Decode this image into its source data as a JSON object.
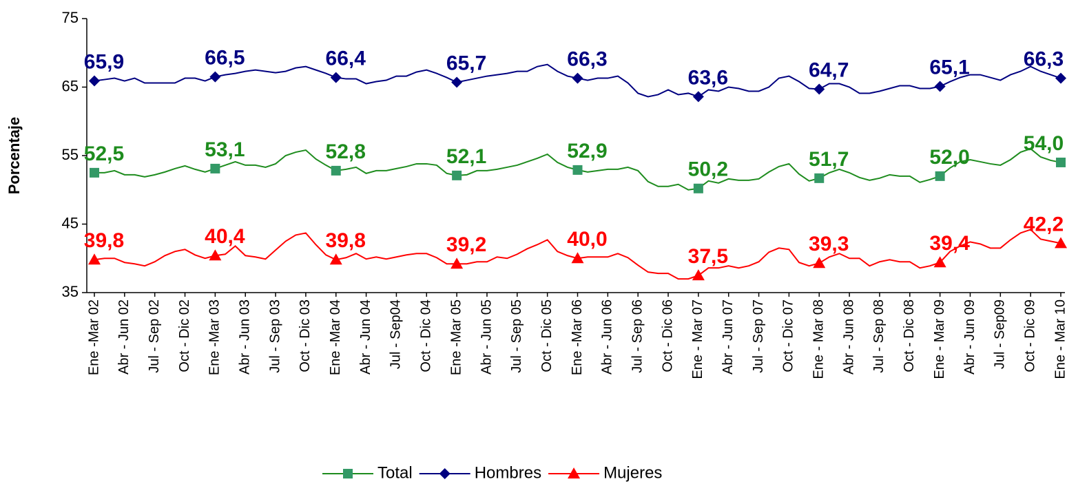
{
  "chart_data": {
    "type": "line",
    "y_label": "Porcentaje",
    "categories": [
      "Ene -Mar 02",
      null,
      null,
      "Abr - Jun 02",
      null,
      null,
      "Jul - Sep 02",
      null,
      null,
      "Oct - Dic 02",
      null,
      null,
      "Ene -Mar 03",
      null,
      null,
      "Abr - Jun 03",
      null,
      null,
      "Jul - Sep 03",
      null,
      null,
      "Oct - Dic 03",
      null,
      null,
      "Ene -Mar 04",
      null,
      null,
      "Abr - Jun 04",
      null,
      null,
      "Jul - Sep04",
      null,
      null,
      "Oct - Dic 04",
      null,
      null,
      "Ene -Mar 05",
      null,
      null,
      "Abr - Jun 05",
      null,
      null,
      "Jul - Sep 05",
      null,
      null,
      "Oct - Dic 05",
      null,
      null,
      "Ene -Mar 06",
      null,
      null,
      "Abr - Jun 06",
      null,
      null,
      "Jul - Sep 06",
      null,
      null,
      "Oct - Dic 06",
      null,
      null,
      "Ene - Mar 07",
      null,
      null,
      "Abr - Jun 07",
      null,
      null,
      "Jul - Sep 07",
      null,
      null,
      "Oct - Dic 07",
      null,
      null,
      "Ene - Mar 08",
      null,
      null,
      "Abr - Jun 08",
      null,
      null,
      "Jul - Sep 08",
      null,
      null,
      "Oct - Dic 08",
      null,
      null,
      "Ene - Mar 09",
      null,
      null,
      "Abr - Jun 09",
      null,
      null,
      "Jul - Sep09",
      null,
      null,
      "Oct - Dic 09",
      null,
      null,
      "Ene - Mar 10"
    ],
    "ylim": [
      35,
      75
    ],
    "yticks": [
      35,
      45,
      55,
      65,
      75
    ],
    "grid": false,
    "legend": "bottom",
    "series": [
      {
        "name": "Total",
        "color": "#1e8c1e",
        "marker_color": "#339966",
        "marker": "square",
        "values": [
          52.5,
          52.5,
          52.8,
          52.2,
          52.2,
          51.9,
          52.2,
          52.6,
          53.1,
          53.5,
          53.0,
          52.6,
          53.1,
          53.6,
          54.1,
          53.6,
          53.6,
          53.3,
          53.8,
          55.0,
          55.5,
          55.8,
          54.5,
          53.6,
          52.8,
          53.0,
          53.3,
          52.4,
          52.8,
          52.8,
          53.1,
          53.4,
          53.8,
          53.8,
          53.6,
          52.4,
          52.1,
          52.2,
          52.8,
          52.8,
          53.0,
          53.3,
          53.6,
          54.1,
          54.6,
          55.2,
          54.0,
          53.3,
          52.9,
          52.6,
          52.8,
          53.0,
          53.0,
          53.3,
          52.8,
          51.2,
          50.5,
          50.5,
          50.8,
          50.0,
          50.2,
          51.3,
          51.0,
          51.6,
          51.4,
          51.4,
          51.6,
          52.6,
          53.4,
          53.8,
          52.3,
          51.3,
          51.7,
          52.5,
          53.0,
          52.5,
          51.8,
          51.4,
          51.7,
          52.2,
          52.0,
          52.0,
          51.1,
          51.5,
          52.0,
          53.2,
          54.1,
          54.4,
          54.1,
          53.8,
          53.6,
          54.4,
          55.5,
          56.0,
          54.8,
          54.3,
          54.0
        ],
        "value_labels": [
          "52,5",
          null,
          null,
          null,
          null,
          null,
          null,
          null,
          null,
          null,
          null,
          null,
          "53,1",
          null,
          null,
          null,
          null,
          null,
          null,
          null,
          null,
          null,
          null,
          null,
          "52,8",
          null,
          null,
          null,
          null,
          null,
          null,
          null,
          null,
          null,
          null,
          null,
          "52,1",
          null,
          null,
          null,
          null,
          null,
          null,
          null,
          null,
          null,
          null,
          null,
          "52,9",
          null,
          null,
          null,
          null,
          null,
          null,
          null,
          null,
          null,
          null,
          null,
          "50,2",
          null,
          null,
          null,
          null,
          null,
          null,
          null,
          null,
          null,
          null,
          null,
          "51,7",
          null,
          null,
          null,
          null,
          null,
          null,
          null,
          null,
          null,
          null,
          null,
          "52,0",
          null,
          null,
          null,
          null,
          null,
          null,
          null,
          null,
          null,
          null,
          null,
          "54,0"
        ]
      },
      {
        "name": "Hombres",
        "color": "#000080",
        "marker_color": "#000080",
        "marker": "diamond",
        "values": [
          65.9,
          66.1,
          66.3,
          65.9,
          66.3,
          65.6,
          65.6,
          65.6,
          65.6,
          66.3,
          66.3,
          65.9,
          66.5,
          66.8,
          67.0,
          67.3,
          67.5,
          67.3,
          67.1,
          67.3,
          67.8,
          68.0,
          67.5,
          67.0,
          66.4,
          66.2,
          66.2,
          65.5,
          65.8,
          66.0,
          66.6,
          66.6,
          67.2,
          67.5,
          67.0,
          66.4,
          65.7,
          66.0,
          66.3,
          66.6,
          66.8,
          67.0,
          67.3,
          67.3,
          68.0,
          68.3,
          67.3,
          66.6,
          66.3,
          66.0,
          66.3,
          66.3,
          66.6,
          65.6,
          64.1,
          63.6,
          63.9,
          64.6,
          63.9,
          64.1,
          63.6,
          64.6,
          64.4,
          65.0,
          64.8,
          64.4,
          64.4,
          65.0,
          66.3,
          66.6,
          65.8,
          64.8,
          64.7,
          65.5,
          65.5,
          65.0,
          64.1,
          64.1,
          64.4,
          64.8,
          65.2,
          65.2,
          64.8,
          64.8,
          65.1,
          65.8,
          66.4,
          66.8,
          66.8,
          66.4,
          66.0,
          66.8,
          67.3,
          68.0,
          67.3,
          66.8,
          66.3
        ],
        "value_labels": [
          "65,9",
          null,
          null,
          null,
          null,
          null,
          null,
          null,
          null,
          null,
          null,
          null,
          "66,5",
          null,
          null,
          null,
          null,
          null,
          null,
          null,
          null,
          null,
          null,
          null,
          "66,4",
          null,
          null,
          null,
          null,
          null,
          null,
          null,
          null,
          null,
          null,
          null,
          "65,7",
          null,
          null,
          null,
          null,
          null,
          null,
          null,
          null,
          null,
          null,
          null,
          "66,3",
          null,
          null,
          null,
          null,
          null,
          null,
          null,
          null,
          null,
          null,
          null,
          "63,6",
          null,
          null,
          null,
          null,
          null,
          null,
          null,
          null,
          null,
          null,
          null,
          "64,7",
          null,
          null,
          null,
          null,
          null,
          null,
          null,
          null,
          null,
          null,
          null,
          "65,1",
          null,
          null,
          null,
          null,
          null,
          null,
          null,
          null,
          null,
          null,
          null,
          "66,3"
        ]
      },
      {
        "name": "Mujeres",
        "color": "#ff0000",
        "marker_color": "#ff0000",
        "marker": "triangle",
        "values": [
          39.8,
          40.0,
          40.0,
          39.4,
          39.2,
          38.9,
          39.5,
          40.4,
          41.0,
          41.3,
          40.5,
          40.0,
          40.4,
          40.6,
          41.8,
          40.4,
          40.2,
          39.9,
          41.2,
          42.5,
          43.4,
          43.7,
          42.0,
          40.5,
          39.8,
          40.1,
          40.7,
          39.9,
          40.2,
          39.9,
          40.2,
          40.5,
          40.7,
          40.7,
          40.1,
          39.2,
          39.2,
          39.2,
          39.5,
          39.5,
          40.2,
          40.0,
          40.6,
          41.4,
          42.0,
          42.7,
          41.0,
          40.4,
          40.0,
          40.2,
          40.2,
          40.2,
          40.7,
          40.1,
          39.0,
          38.0,
          37.8,
          37.8,
          37.0,
          37.0,
          37.5,
          38.6,
          38.6,
          38.9,
          38.6,
          38.9,
          39.5,
          40.9,
          41.5,
          41.3,
          39.4,
          38.9,
          39.3,
          40.2,
          40.7,
          40.0,
          40.0,
          38.9,
          39.5,
          39.8,
          39.5,
          39.5,
          38.6,
          38.9,
          39.4,
          41.0,
          41.8,
          42.4,
          42.1,
          41.5,
          41.5,
          42.7,
          43.7,
          44.2,
          42.8,
          42.5,
          42.2
        ],
        "value_labels": [
          "39,8",
          null,
          null,
          null,
          null,
          null,
          null,
          null,
          null,
          null,
          null,
          null,
          "40,4",
          null,
          null,
          null,
          null,
          null,
          null,
          null,
          null,
          null,
          null,
          null,
          "39,8",
          null,
          null,
          null,
          null,
          null,
          null,
          null,
          null,
          null,
          null,
          null,
          "39,2",
          null,
          null,
          null,
          null,
          null,
          null,
          null,
          null,
          null,
          null,
          null,
          "40,0",
          null,
          null,
          null,
          null,
          null,
          null,
          null,
          null,
          null,
          null,
          null,
          "37,5",
          null,
          null,
          null,
          null,
          null,
          null,
          null,
          null,
          null,
          null,
          null,
          "39,3",
          null,
          null,
          null,
          null,
          null,
          null,
          null,
          null,
          null,
          null,
          null,
          "39,4",
          null,
          null,
          null,
          null,
          null,
          null,
          null,
          null,
          null,
          null,
          null,
          "42,2"
        ]
      }
    ]
  }
}
